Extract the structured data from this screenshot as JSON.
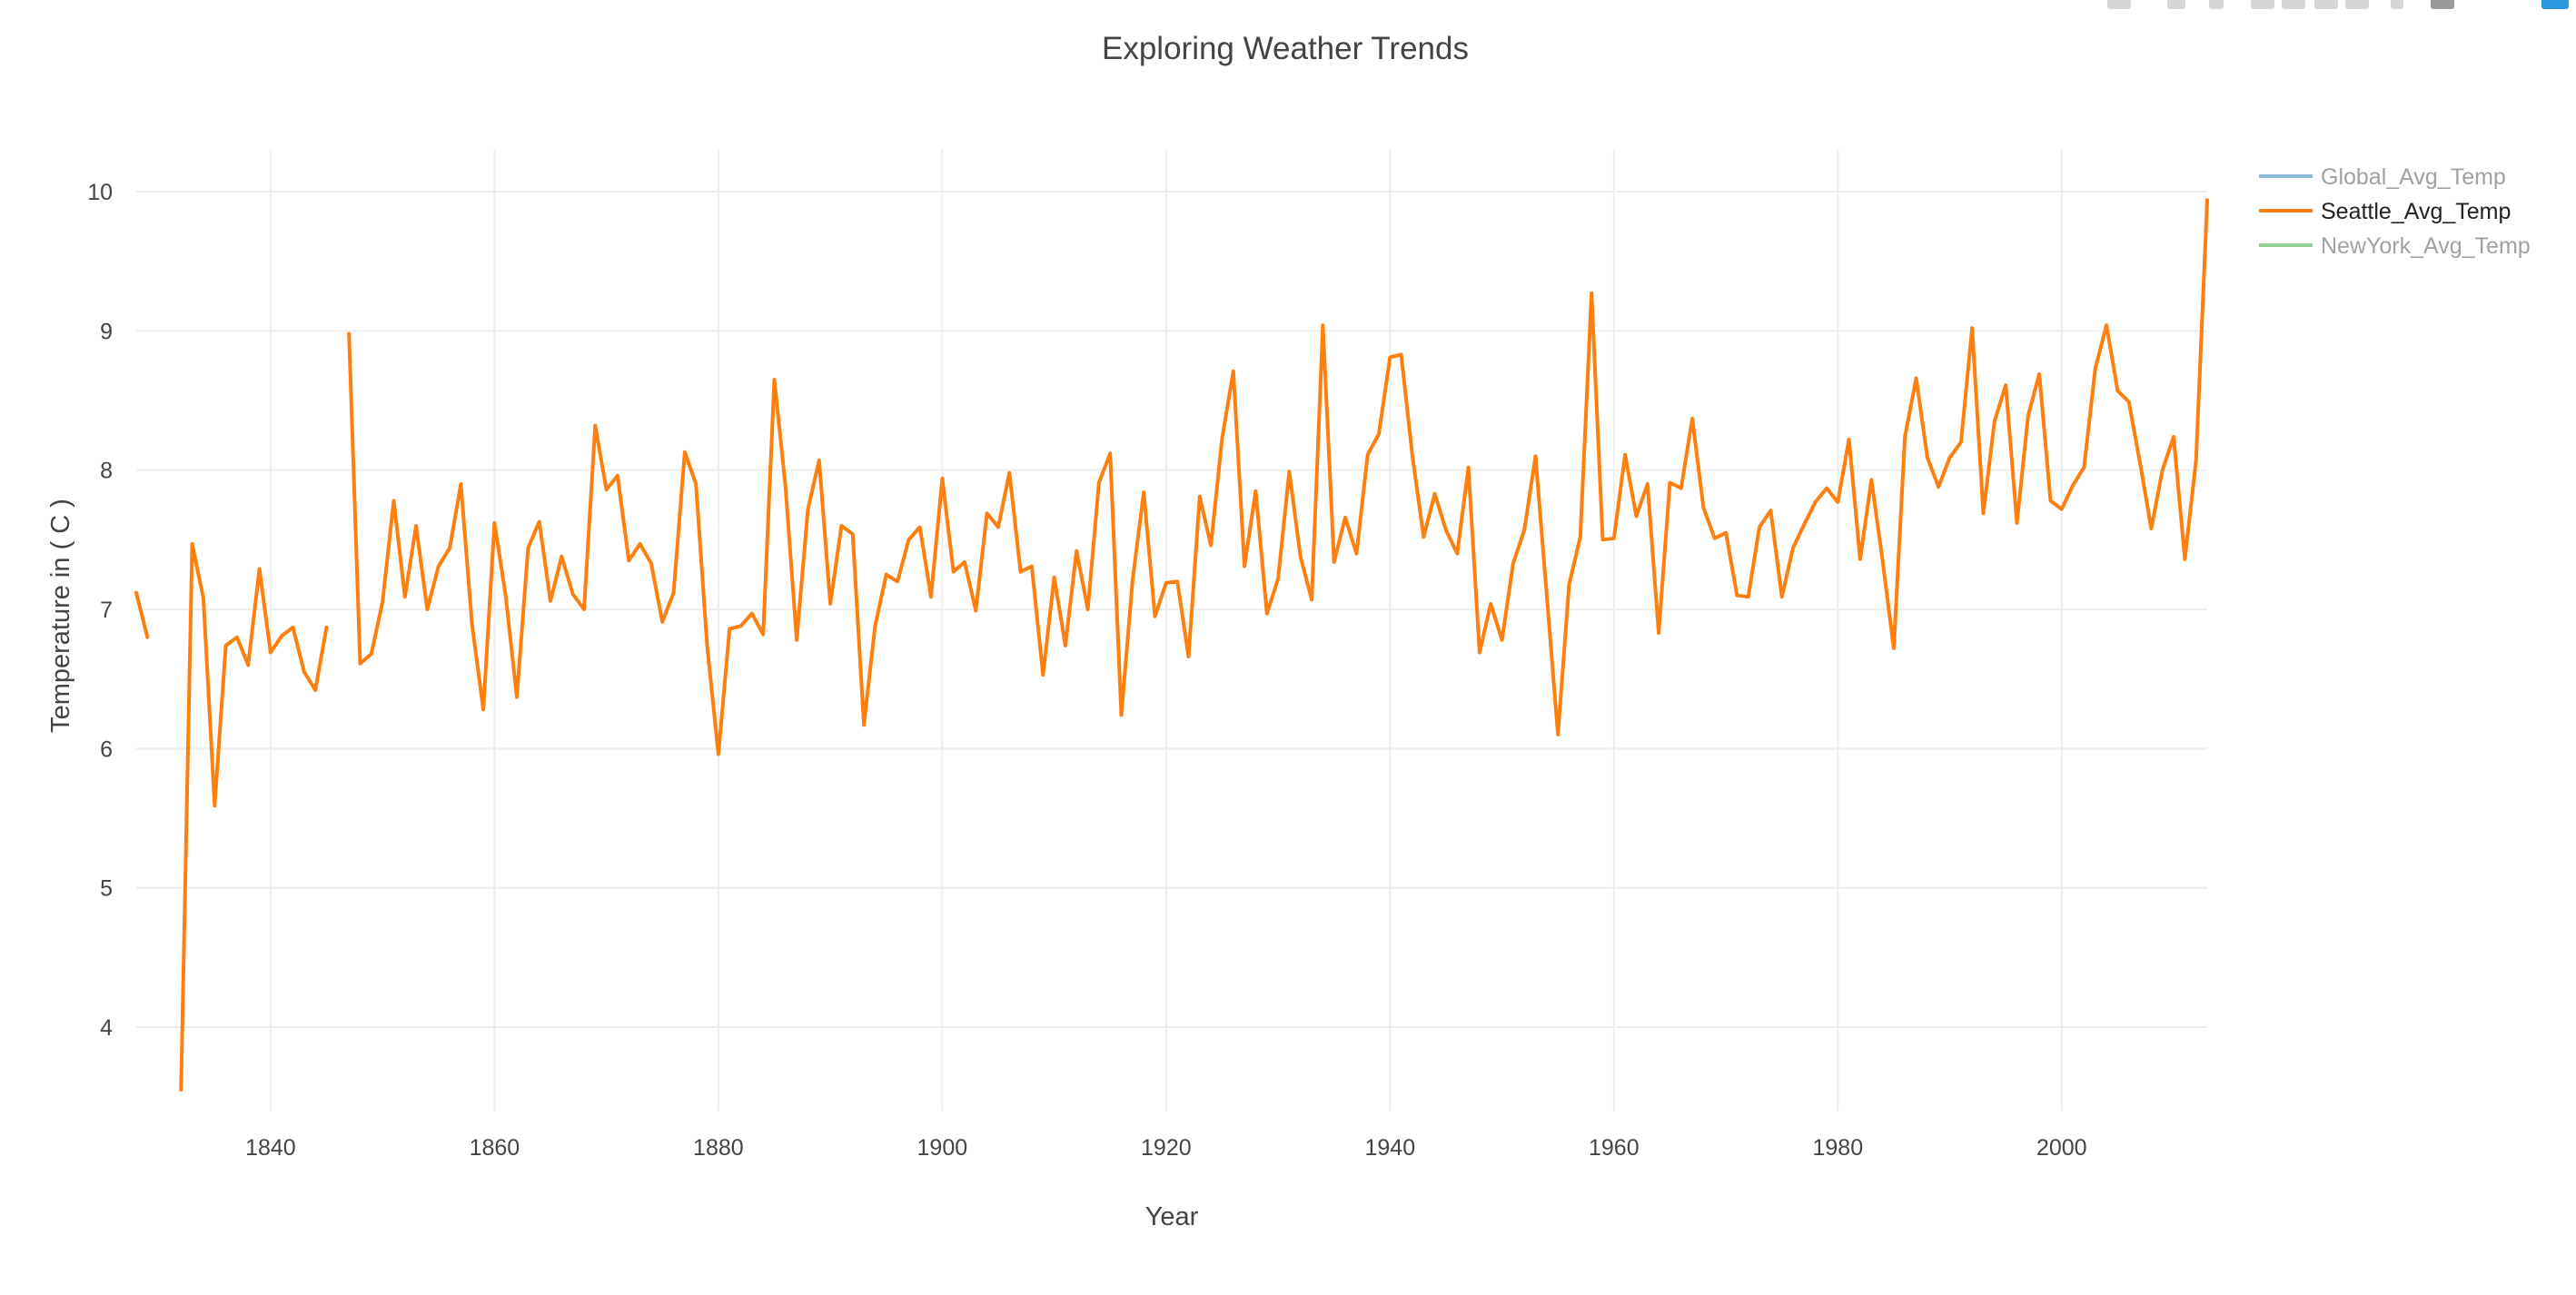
{
  "chart_data": {
    "type": "line",
    "title": "Exploring Weather Trends",
    "xlabel": "Year",
    "ylabel": "Temperature in ( C )",
    "xlim": [
      1828,
      2013
    ],
    "ylim": [
      3.4,
      10.3
    ],
    "x_ticks": [
      1840,
      1860,
      1880,
      1900,
      1920,
      1940,
      1960,
      1980,
      2000
    ],
    "y_ticks": [
      4,
      5,
      6,
      7,
      8,
      9,
      10
    ],
    "grid": true,
    "legend_position": "top-right",
    "series": [
      {
        "name": "Global_Avg_Temp",
        "color": "#1f77b4",
        "visible": false,
        "values": []
      },
      {
        "name": "Seattle_Avg_Temp",
        "color": "#ff7f0e",
        "visible": true,
        "x": [
          1828,
          1829,
          1830,
          1831,
          1832,
          1833,
          1834,
          1835,
          1836,
          1837,
          1838,
          1839,
          1840,
          1841,
          1842,
          1843,
          1844,
          1845,
          1846,
          1847,
          1848,
          1849,
          1850,
          1851,
          1852,
          1853,
          1854,
          1855,
          1856,
          1857,
          1858,
          1859,
          1860,
          1861,
          1862,
          1863,
          1864,
          1865,
          1866,
          1867,
          1868,
          1869,
          1870,
          1871,
          1872,
          1873,
          1874,
          1875,
          1876,
          1877,
          1878,
          1879,
          1880,
          1881,
          1882,
          1883,
          1884,
          1885,
          1886,
          1887,
          1888,
          1889,
          1890,
          1891,
          1892,
          1893,
          1894,
          1895,
          1896,
          1897,
          1898,
          1899,
          1900,
          1901,
          1902,
          1903,
          1904,
          1905,
          1906,
          1907,
          1908,
          1909,
          1910,
          1911,
          1912,
          1913,
          1914,
          1915,
          1916,
          1917,
          1918,
          1919,
          1920,
          1921,
          1922,
          1923,
          1924,
          1925,
          1926,
          1927,
          1928,
          1929,
          1930,
          1931,
          1932,
          1933,
          1934,
          1935,
          1936,
          1937,
          1938,
          1939,
          1940,
          1941,
          1942,
          1943,
          1944,
          1945,
          1946,
          1947,
          1948,
          1949,
          1950,
          1951,
          1952,
          1953,
          1954,
          1955,
          1956,
          1957,
          1958,
          1959,
          1960,
          1961,
          1962,
          1963,
          1964,
          1965,
          1966,
          1967,
          1968,
          1969,
          1970,
          1971,
          1972,
          1973,
          1974,
          1975,
          1976,
          1977,
          1978,
          1979,
          1980,
          1981,
          1982,
          1983,
          1984,
          1985,
          1986,
          1987,
          1988,
          1989,
          1990,
          1991,
          1992,
          1993,
          1994,
          1995,
          1996,
          1997,
          1998,
          1999,
          2000,
          2001,
          2002,
          2003,
          2004,
          2005,
          2006,
          2007,
          2008,
          2009,
          2010,
          2011,
          2012,
          2013
        ],
        "values": [
          7.12,
          6.8,
          null,
          null,
          3.55,
          7.47,
          7.08,
          5.59,
          6.74,
          6.8,
          6.6,
          7.29,
          6.69,
          6.81,
          6.87,
          6.55,
          6.42,
          6.87,
          null,
          8.98,
          6.61,
          6.68,
          7.05,
          7.78,
          7.09,
          7.6,
          7.0,
          7.31,
          7.44,
          7.9,
          6.89,
          6.28,
          7.62,
          7.1,
          6.37,
          7.44,
          7.63,
          7.06,
          7.38,
          7.11,
          7.0,
          8.32,
          7.86,
          7.96,
          7.35,
          7.47,
          7.33,
          6.91,
          7.12,
          8.13,
          7.9,
          6.74,
          5.96,
          6.86,
          6.88,
          6.97,
          6.82,
          8.65,
          7.88,
          6.78,
          7.72,
          8.07,
          7.04,
          7.6,
          7.54,
          6.17,
          6.88,
          7.25,
          7.2,
          7.5,
          7.59,
          7.09,
          7.94,
          7.27,
          7.34,
          6.99,
          7.69,
          7.59,
          7.98,
          7.27,
          7.31,
          6.53,
          7.23,
          6.74,
          7.42,
          7.0,
          7.91,
          8.12,
          6.24,
          7.21,
          7.84,
          6.95,
          7.19,
          7.2,
          6.66,
          7.81,
          7.46,
          8.23,
          8.71,
          7.31,
          7.85,
          6.97,
          7.22,
          7.99,
          7.38,
          7.07,
          9.04,
          7.34,
          7.66,
          7.4,
          8.11,
          8.26,
          8.81,
          8.83,
          8.1,
          7.52,
          7.83,
          7.57,
          7.4,
          8.02,
          6.69,
          7.04,
          6.78,
          7.33,
          7.57,
          8.1,
          7.1,
          6.1,
          7.18,
          7.52,
          9.27,
          7.5,
          7.51,
          8.11,
          7.67,
          7.9,
          6.83,
          7.91,
          7.87,
          8.37,
          7.73,
          7.51,
          7.55,
          7.1,
          7.09,
          7.59,
          7.71,
          7.09,
          7.44,
          7.61,
          7.77,
          7.87,
          7.77,
          8.22,
          7.36,
          7.93,
          7.35,
          6.72,
          8.24,
          8.66,
          8.09,
          7.88,
          8.09,
          8.2,
          9.02,
          7.69,
          8.35,
          8.61,
          7.62,
          8.39,
          8.69,
          7.78,
          7.72,
          7.89,
          8.02,
          8.73,
          9.04,
          8.57,
          8.49,
          8.05,
          7.58,
          8.0,
          8.24,
          7.36,
          8.07,
          9.94
        ]
      },
      {
        "name": "NewYork_Avg_Temp",
        "color": "#2ca02c",
        "visible": false,
        "values": []
      }
    ]
  }
}
